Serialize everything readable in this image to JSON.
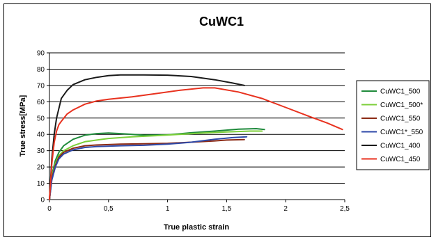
{
  "chart_data": {
    "type": "line",
    "title": "CuWC1",
    "xlabel": "True plastic strain",
    "ylabel": "True stress[MPa]",
    "xlim": [
      0,
      2.5
    ],
    "ylim": [
      0,
      90
    ],
    "x_ticks": [
      "0",
      "0,5",
      "1",
      "1,5",
      "2",
      "2,5"
    ],
    "y_ticks": [
      "0",
      "10",
      "20",
      "30",
      "40",
      "50",
      "60",
      "70",
      "80",
      "90"
    ],
    "grid": "horizontal",
    "legend_position": "right",
    "series": [
      {
        "name": "CuWC1_500",
        "color": "#1f8a3b",
        "x": [
          0,
          0.02,
          0.05,
          0.08,
          0.12,
          0.2,
          0.3,
          0.4,
          0.5,
          0.6,
          0.8,
          1.0,
          1.2,
          1.4,
          1.6,
          1.75,
          1.82
        ],
        "y": [
          0,
          15,
          24,
          29,
          33,
          37,
          39.5,
          40.5,
          40.8,
          40.5,
          39.5,
          39.7,
          41,
          42,
          43.2,
          43.5,
          43
        ]
      },
      {
        "name": "CuWC1_500*",
        "color": "#7ccf3a",
        "x": [
          0,
          0.02,
          0.05,
          0.08,
          0.12,
          0.2,
          0.3,
          0.4,
          0.5,
          0.7,
          0.9,
          1.1,
          1.3,
          1.5,
          1.7,
          1.8
        ],
        "y": [
          0,
          14,
          22,
          27,
          30,
          33,
          35.5,
          36.5,
          37.5,
          38.5,
          39.2,
          40,
          40.8,
          41.5,
          42,
          42
        ]
      },
      {
        "name": "CuWC1_550",
        "color": "#8b2a14",
        "x": [
          0,
          0.02,
          0.05,
          0.08,
          0.12,
          0.2,
          0.3,
          0.4,
          0.6,
          0.8,
          1.0,
          1.2,
          1.4,
          1.5,
          1.65
        ],
        "y": [
          0,
          13,
          21,
          26,
          29,
          31.5,
          33,
          33.5,
          34,
          34.2,
          34.5,
          35.2,
          36,
          36.5,
          36.8
        ]
      },
      {
        "name": "CuWC1*_550",
        "color": "#2e49a8",
        "x": [
          0,
          0.02,
          0.05,
          0.08,
          0.12,
          0.2,
          0.3,
          0.4,
          0.6,
          0.8,
          1.0,
          1.2,
          1.4,
          1.55,
          1.67
        ],
        "y": [
          0,
          12,
          20,
          25,
          28,
          30.5,
          32,
          32.5,
          33,
          33.3,
          34,
          35.2,
          37,
          38,
          38.5
        ]
      },
      {
        "name": "CuWC1_400",
        "color": "#1a1a1a",
        "x": [
          0,
          0.02,
          0.04,
          0.06,
          0.08,
          0.1,
          0.15,
          0.2,
          0.3,
          0.4,
          0.5,
          0.6,
          0.8,
          1.0,
          1.2,
          1.4,
          1.55,
          1.65
        ],
        "y": [
          0,
          25,
          40,
          50,
          56,
          62,
          67,
          70.5,
          73.5,
          75,
          76,
          76.5,
          76.5,
          76.3,
          75.5,
          73.5,
          71.5,
          70
        ]
      },
      {
        "name": "CuWC1_450",
        "color": "#e8321f",
        "x": [
          0,
          0.02,
          0.04,
          0.06,
          0.08,
          0.1,
          0.15,
          0.2,
          0.3,
          0.4,
          0.5,
          0.7,
          0.9,
          1.1,
          1.3,
          1.4,
          1.6,
          1.8,
          2.0,
          2.2,
          2.35,
          2.48
        ],
        "y": [
          0,
          22,
          35,
          42,
          46,
          48,
          52.5,
          55,
          58.5,
          60.5,
          61.5,
          63,
          65,
          67,
          68.5,
          68.5,
          66,
          62,
          56.5,
          51,
          47,
          43
        ]
      }
    ]
  }
}
